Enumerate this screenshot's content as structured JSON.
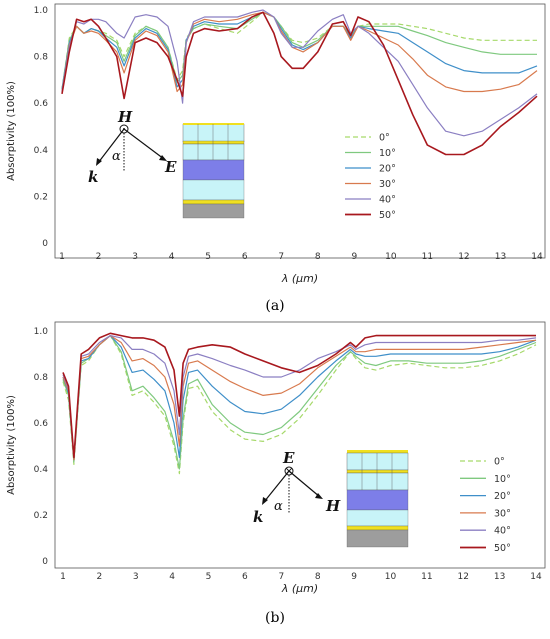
{
  "colors": {
    "0°": "#a6d96a",
    "10°": "#7fc97f",
    "20°": "#3f8fc9",
    "30°": "#d87a4e",
    "40°": "#8b7fc2",
    "50°": "#a8181e"
  },
  "chart_data": [
    {
      "type": "line",
      "panel_label": "(a)",
      "xlabel": "λ (μm)",
      "ylabel": "Absorptivity (100%)",
      "xlim": [
        1,
        14
      ],
      "ylim": [
        0,
        1.0
      ],
      "xticks": [
        "1",
        "2",
        "3",
        "4",
        "5",
        "6",
        "7",
        "8",
        "9",
        "10",
        "11",
        "12",
        "13",
        "14"
      ],
      "yticks": [
        "0",
        "0.2",
        "0.4",
        "0.6",
        "0.8",
        "1.0"
      ],
      "legend_position": "right",
      "diagram": {
        "top": "H",
        "left": "k",
        "right": "E",
        "angle": "α"
      },
      "x": [
        1,
        1.2,
        1.4,
        1.6,
        1.8,
        2,
        2.2,
        2.5,
        2.7,
        3,
        3.3,
        3.6,
        3.9,
        4.15,
        4.3,
        4.4,
        4.6,
        4.9,
        5.3,
        5.8,
        6.2,
        6.5,
        6.8,
        7,
        7.3,
        7.6,
        8,
        8.4,
        8.7,
        8.9,
        9.1,
        9.4,
        9.8,
        10.2,
        10.6,
        11,
        11.5,
        12,
        12.5,
        13,
        13.5,
        14
      ],
      "series": [
        {
          "name": "0°",
          "dash": true,
          "values": [
            0.66,
            0.88,
            0.93,
            0.9,
            0.92,
            0.91,
            0.9,
            0.87,
            0.8,
            0.9,
            0.93,
            0.91,
            0.84,
            0.7,
            0.74,
            0.88,
            0.92,
            0.94,
            0.92,
            0.9,
            0.95,
            0.99,
            0.97,
            0.93,
            0.87,
            0.86,
            0.88,
            0.93,
            0.93,
            0.9,
            0.93,
            0.94,
            0.94,
            0.94,
            0.93,
            0.92,
            0.9,
            0.88,
            0.87,
            0.87,
            0.87,
            0.87
          ]
        },
        {
          "name": "10°",
          "values": [
            0.66,
            0.87,
            0.93,
            0.9,
            0.92,
            0.91,
            0.89,
            0.86,
            0.78,
            0.89,
            0.93,
            0.91,
            0.84,
            0.69,
            0.72,
            0.87,
            0.92,
            0.94,
            0.93,
            0.92,
            0.96,
            0.99,
            0.97,
            0.93,
            0.86,
            0.84,
            0.87,
            0.93,
            0.93,
            0.89,
            0.93,
            0.93,
            0.93,
            0.93,
            0.91,
            0.89,
            0.86,
            0.84,
            0.82,
            0.81,
            0.81,
            0.81
          ]
        },
        {
          "name": "20°",
          "values": [
            0.66,
            0.86,
            0.93,
            0.9,
            0.92,
            0.91,
            0.88,
            0.84,
            0.76,
            0.88,
            0.92,
            0.9,
            0.83,
            0.67,
            0.7,
            0.87,
            0.93,
            0.95,
            0.94,
            0.94,
            0.97,
            0.99,
            0.97,
            0.92,
            0.85,
            0.83,
            0.86,
            0.93,
            0.93,
            0.88,
            0.93,
            0.92,
            0.91,
            0.9,
            0.86,
            0.82,
            0.77,
            0.74,
            0.73,
            0.73,
            0.73,
            0.76
          ]
        },
        {
          "name": "30°",
          "values": [
            0.65,
            0.85,
            0.93,
            0.9,
            0.91,
            0.9,
            0.87,
            0.82,
            0.73,
            0.87,
            0.91,
            0.89,
            0.82,
            0.65,
            0.68,
            0.86,
            0.94,
            0.96,
            0.95,
            0.96,
            0.98,
            0.99,
            0.97,
            0.91,
            0.84,
            0.82,
            0.86,
            0.93,
            0.93,
            0.87,
            0.93,
            0.91,
            0.88,
            0.85,
            0.79,
            0.72,
            0.67,
            0.65,
            0.65,
            0.66,
            0.68,
            0.74
          ]
        },
        {
          "name": "40°",
          "values": [
            0.65,
            0.84,
            0.95,
            0.94,
            0.96,
            0.96,
            0.95,
            0.9,
            0.88,
            0.97,
            0.98,
            0.97,
            0.93,
            0.78,
            0.6,
            0.86,
            0.95,
            0.97,
            0.97,
            0.97,
            0.99,
            1.0,
            0.97,
            0.9,
            0.84,
            0.84,
            0.91,
            0.96,
            0.98,
            0.9,
            0.93,
            0.9,
            0.84,
            0.78,
            0.68,
            0.58,
            0.48,
            0.46,
            0.48,
            0.53,
            0.58,
            0.64
          ]
        },
        {
          "name": "50°",
          "values": [
            0.64,
            0.82,
            0.96,
            0.95,
            0.96,
            0.93,
            0.88,
            0.8,
            0.62,
            0.86,
            0.88,
            0.86,
            0.8,
            0.7,
            0.63,
            0.8,
            0.9,
            0.92,
            0.91,
            0.92,
            0.97,
            0.99,
            0.9,
            0.8,
            0.75,
            0.75,
            0.82,
            0.94,
            0.95,
            0.89,
            0.97,
            0.95,
            0.85,
            0.7,
            0.55,
            0.42,
            0.38,
            0.38,
            0.42,
            0.5,
            0.56,
            0.63
          ]
        }
      ]
    },
    {
      "type": "line",
      "panel_label": "(b)",
      "xlabel": "λ (μm)",
      "ylabel": "Absorptivity (100%)",
      "xlim": [
        1,
        14
      ],
      "ylim": [
        0,
        1.0
      ],
      "xticks": [
        "1",
        "2",
        "3",
        "4",
        "5",
        "6",
        "7",
        "8",
        "9",
        "10",
        "11",
        "12",
        "13",
        "14"
      ],
      "yticks": [
        "0",
        "0.2",
        "0.4",
        "0.6",
        "0.8",
        "1.0"
      ],
      "legend_position": "right",
      "diagram": {
        "top": "E",
        "left": "k",
        "right": "H",
        "angle": "α"
      },
      "x": [
        1,
        1.15,
        1.3,
        1.5,
        1.7,
        2,
        2.3,
        2.6,
        2.9,
        3.2,
        3.5,
        3.8,
        4.05,
        4.2,
        4.3,
        4.45,
        4.7,
        5.1,
        5.6,
        6,
        6.5,
        7,
        7.5,
        8,
        8.5,
        8.9,
        9.05,
        9.3,
        9.6,
        10,
        10.5,
        11,
        11.5,
        12,
        12.5,
        13,
        13.5,
        14
      ],
      "series": [
        {
          "name": "0°",
          "dash": true,
          "values": [
            0.78,
            0.7,
            0.42,
            0.85,
            0.87,
            0.94,
            0.98,
            0.9,
            0.72,
            0.74,
            0.69,
            0.63,
            0.5,
            0.38,
            0.6,
            0.75,
            0.76,
            0.65,
            0.57,
            0.53,
            0.52,
            0.55,
            0.62,
            0.72,
            0.83,
            0.91,
            0.88,
            0.84,
            0.83,
            0.85,
            0.86,
            0.85,
            0.84,
            0.84,
            0.85,
            0.87,
            0.9,
            0.94
          ]
        },
        {
          "name": "10°",
          "values": [
            0.79,
            0.72,
            0.43,
            0.86,
            0.88,
            0.94,
            0.98,
            0.91,
            0.74,
            0.76,
            0.71,
            0.65,
            0.52,
            0.4,
            0.62,
            0.77,
            0.79,
            0.68,
            0.6,
            0.56,
            0.55,
            0.58,
            0.65,
            0.75,
            0.85,
            0.91,
            0.89,
            0.86,
            0.85,
            0.87,
            0.87,
            0.86,
            0.86,
            0.86,
            0.87,
            0.89,
            0.92,
            0.95
          ]
        },
        {
          "name": "20°",
          "values": [
            0.8,
            0.73,
            0.44,
            0.87,
            0.88,
            0.94,
            0.98,
            0.93,
            0.82,
            0.83,
            0.79,
            0.74,
            0.6,
            0.45,
            0.7,
            0.82,
            0.83,
            0.76,
            0.69,
            0.65,
            0.64,
            0.66,
            0.72,
            0.8,
            0.87,
            0.92,
            0.9,
            0.89,
            0.89,
            0.9,
            0.9,
            0.9,
            0.9,
            0.9,
            0.9,
            0.91,
            0.93,
            0.96
          ]
        },
        {
          "name": "30°",
          "values": [
            0.8,
            0.74,
            0.44,
            0.88,
            0.89,
            0.94,
            0.98,
            0.95,
            0.87,
            0.88,
            0.85,
            0.8,
            0.68,
            0.5,
            0.76,
            0.86,
            0.87,
            0.83,
            0.78,
            0.75,
            0.72,
            0.73,
            0.77,
            0.84,
            0.89,
            0.93,
            0.91,
            0.91,
            0.92,
            0.92,
            0.92,
            0.92,
            0.92,
            0.92,
            0.93,
            0.94,
            0.95,
            0.96
          ]
        },
        {
          "name": "40°",
          "values": [
            0.81,
            0.75,
            0.45,
            0.89,
            0.9,
            0.95,
            0.98,
            0.97,
            0.92,
            0.92,
            0.9,
            0.86,
            0.74,
            0.55,
            0.8,
            0.89,
            0.9,
            0.88,
            0.85,
            0.83,
            0.8,
            0.8,
            0.83,
            0.88,
            0.91,
            0.94,
            0.92,
            0.94,
            0.95,
            0.95,
            0.95,
            0.95,
            0.95,
            0.95,
            0.95,
            0.96,
            0.96,
            0.97
          ]
        },
        {
          "name": "50°",
          "values": [
            0.82,
            0.76,
            0.45,
            0.9,
            0.92,
            0.97,
            0.99,
            0.98,
            0.97,
            0.97,
            0.96,
            0.93,
            0.83,
            0.63,
            0.86,
            0.92,
            0.93,
            0.94,
            0.93,
            0.9,
            0.87,
            0.84,
            0.82,
            0.85,
            0.9,
            0.95,
            0.93,
            0.97,
            0.98,
            0.98,
            0.98,
            0.98,
            0.98,
            0.98,
            0.98,
            0.98,
            0.98,
            0.98
          ]
        }
      ]
    }
  ]
}
